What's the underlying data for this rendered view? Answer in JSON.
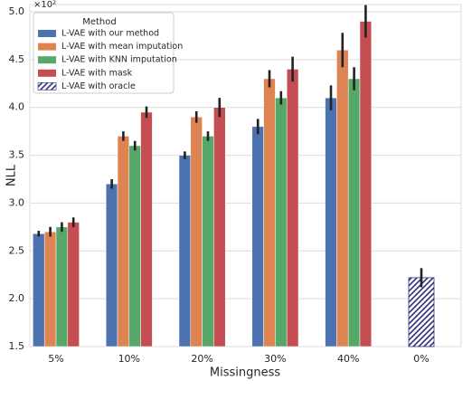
{
  "chart_data": {
    "type": "bar",
    "y_axis_label": "NLL",
    "x_axis_label": "Missingness",
    "y_offset_label": "×10²",
    "legend_title": "Method",
    "legend_position": "upper left",
    "grid": true,
    "categories": [
      "5%",
      "10%",
      "20%",
      "30%",
      "40%",
      "0%"
    ],
    "ylim": [
      1.5,
      5.0
    ],
    "yticks": [
      1.5,
      {
        "value": 2,
        "label": "2.0"
      },
      2.5,
      {
        "value": 3,
        "label": "3.0"
      },
      3.5,
      {
        "value": 4,
        "label": "4.0"
      },
      4.5,
      {
        "value": 5,
        "label": "5.0"
      }
    ],
    "series": [
      {
        "name": "L-VAE with our method",
        "color": "#4c72b0",
        "values": [
          2.68,
          3.2,
          3.5,
          3.8,
          4.1,
          null
        ],
        "errors": [
          0.03,
          0.05,
          0.04,
          0.08,
          0.13,
          null
        ]
      },
      {
        "name": "L-VAE with mean imputation",
        "color": "#dd8452",
        "values": [
          2.7,
          3.7,
          3.9,
          4.3,
          4.6,
          null
        ],
        "errors": [
          0.05,
          0.05,
          0.06,
          0.09,
          0.18,
          null
        ]
      },
      {
        "name": "L-VAE with KNN imputation",
        "color": "#55a868",
        "values": [
          2.75,
          3.6,
          3.7,
          4.1,
          4.3,
          null
        ],
        "errors": [
          0.05,
          0.05,
          0.05,
          0.07,
          0.12,
          null
        ]
      },
      {
        "name": "L-VAE with mask",
        "color": "#c44e52",
        "values": [
          2.8,
          3.95,
          4.0,
          4.4,
          4.9,
          null
        ],
        "errors": [
          0.05,
          0.06,
          0.1,
          0.13,
          0.17,
          null
        ]
      },
      {
        "name": "L-VAE with oracle",
        "color": "#2f2f7f",
        "hatch": true,
        "values": [
          null,
          null,
          null,
          null,
          null,
          2.22
        ],
        "errors": [
          null,
          null,
          null,
          null,
          null,
          0.1
        ]
      }
    ]
  }
}
